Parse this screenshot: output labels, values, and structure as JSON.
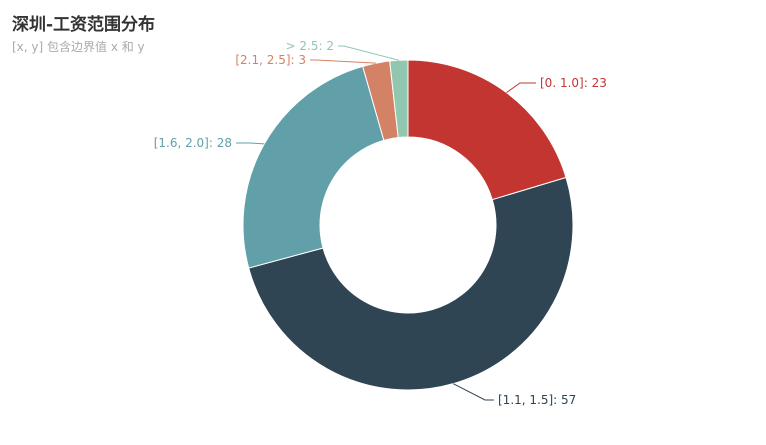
{
  "chart_data": {
    "type": "pie",
    "title": "深圳-工资范围分布",
    "subtitle": "[x, y] 包含边界值 x 和 y",
    "donut": true,
    "slices": [
      {
        "label": "[0. 1.0]",
        "value": 23,
        "color": "#c23531"
      },
      {
        "label": "[1.1, 1.5]",
        "value": 57,
        "color": "#2f4554"
      },
      {
        "label": "[1.6, 2.0]",
        "value": 28,
        "color": "#61a0a8"
      },
      {
        "label": "[2.1, 2.5]",
        "value": 3,
        "color": "#d48265"
      },
      {
        "label": "> 2.5",
        "value": 2,
        "color": "#91c7ae"
      }
    ]
  }
}
